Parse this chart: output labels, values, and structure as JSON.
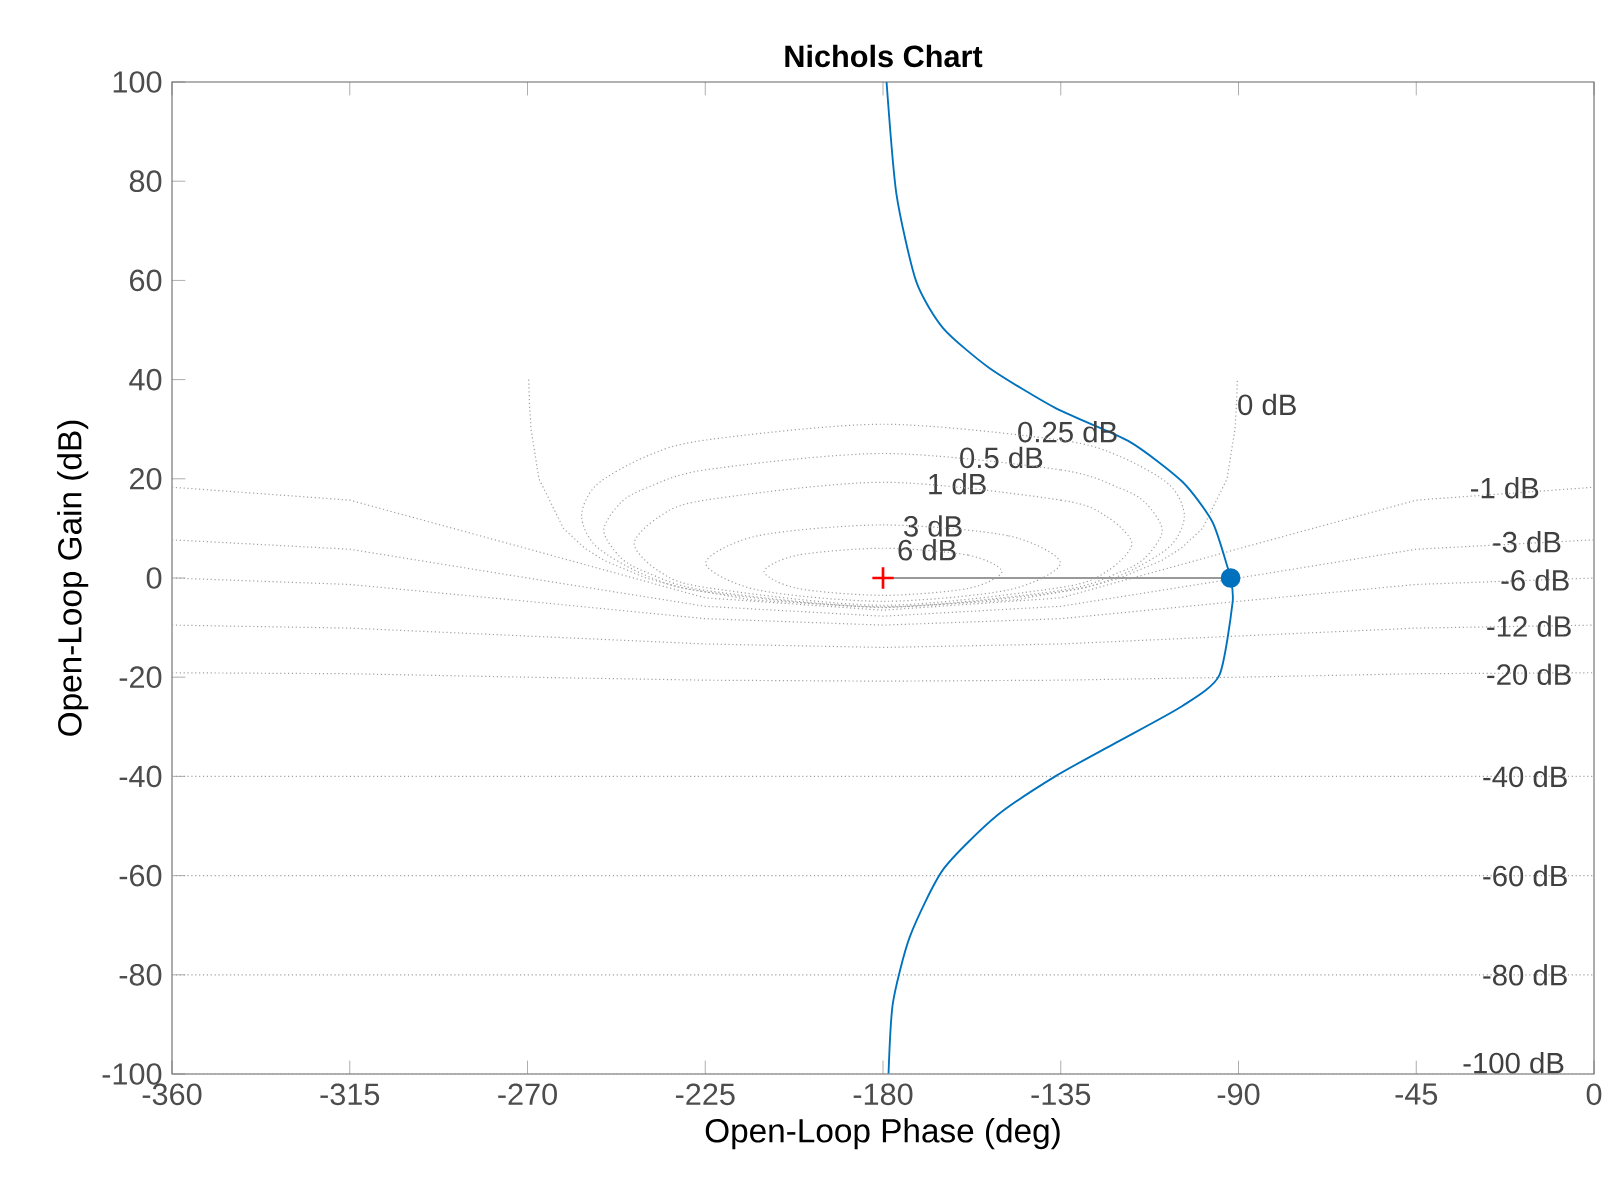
{
  "chart_data": {
    "type": "line",
    "title": "Nichols Chart",
    "xlabel": "Open-Loop Phase (deg)",
    "ylabel": "Open-Loop Gain (dB)",
    "xlim": [
      -360,
      0
    ],
    "ylim": [
      -100,
      100
    ],
    "xticks": [
      -360,
      -315,
      -270,
      -225,
      -180,
      -135,
      -90,
      -45,
      0
    ],
    "yticks": [
      -100,
      -80,
      -60,
      -40,
      -20,
      0,
      20,
      40,
      60,
      80,
      100
    ],
    "series": [
      {
        "color": "#a0a0a0",
        "line_style": "dotted",
        "x": [
          -269.7,
          -269.5,
          -269.1,
          -267.1,
          -260.9,
          -255.5,
          -250.5,
          -240,
          -231.3,
          -213.6,
          -180,
          -146.4,
          -128.7,
          -120,
          -109.5,
          -104.5,
          -99.1,
          -92.9,
          -90.9,
          -90.5,
          -90.3
        ],
        "values": [
          40,
          35,
          30,
          20,
          10,
          6.0,
          3.5,
          0,
          -1.9,
          -4.4,
          -6.0,
          -4.4,
          -1.9,
          0,
          3.5,
          6.0,
          10,
          20,
          30,
          35,
          40
        ]
      },
      {
        "color": "#a0a0a0",
        "line_style": "dotted",
        "x": [
          -360,
          -315,
          -270,
          -225,
          -180,
          -135,
          -90,
          -45,
          0
        ],
        "values": [
          18.3,
          15.7,
          5.9,
          -4.0,
          -6.5,
          -4.0,
          5.9,
          15.7,
          18.3
        ]
      },
      {
        "color": "#a0a0a0",
        "line_style": "dotted",
        "x": [
          -360,
          -315,
          -270,
          -225,
          -180,
          -135,
          -90,
          -45,
          0
        ],
        "values": [
          7.7,
          5.8,
          0,
          -5.7,
          -7.7,
          -5.7,
          0,
          5.8,
          7.7
        ]
      },
      {
        "color": "#a0a0a0",
        "line_style": "dotted",
        "x": [
          -360,
          -315,
          -270,
          -225,
          -180,
          -135,
          -90,
          -45,
          0
        ],
        "values": [
          0,
          -1.3,
          -4.7,
          -8.2,
          -9.5,
          -8.2,
          -4.7,
          -1.3,
          0
        ]
      },
      {
        "color": "#a0a0a0",
        "line_style": "dotted",
        "x": [
          -360,
          -315,
          -270,
          -225,
          -180,
          -135,
          -90,
          -45,
          0
        ],
        "values": [
          -9.5,
          -10.1,
          -11.7,
          -13.3,
          -14.0,
          -13.3,
          -11.7,
          -10.1,
          -9.5
        ]
      },
      {
        "color": "#a0a0a0",
        "line_style": "dotted",
        "x": [
          -360,
          -315,
          -270,
          -225,
          -180,
          -135,
          -90,
          -45,
          0
        ],
        "values": [
          -19.1,
          -19.3,
          -20,
          -20.6,
          -20.8,
          -20.6,
          -20,
          -19.3,
          -19.1
        ]
      },
      {
        "color": "#a0a0a0",
        "line_style": "dotted",
        "x": [
          -360,
          0
        ],
        "values": [
          -40,
          -40
        ]
      },
      {
        "color": "#a0a0a0",
        "line_style": "dotted",
        "x": [
          -360,
          0
        ],
        "values": [
          -60,
          -60
        ]
      },
      {
        "color": "#a0a0a0",
        "line_style": "dotted",
        "x": [
          -360,
          0
        ],
        "values": [
          -80,
          -80
        ]
      },
      {
        "color": "#a0a0a0",
        "line_style": "dotted",
        "x": [
          -360,
          0
        ],
        "values": [
          -100,
          -100
        ]
      },
      {
        "color": "#999999",
        "line_style": "solid",
        "x": [
          -180,
          -92
        ],
        "values": [
          0,
          0
        ]
      },
      {
        "color": "#0072bd",
        "line_style": "solid",
        "x": [
          -178.6,
          -177.5,
          -173.2,
          -164.8,
          -151.3,
          -136.2,
          -121,
          -104.2,
          -94.9,
          -91.5,
          -92,
          -92.7,
          -96.6,
          -104.2,
          -117.6,
          -136.2,
          -153.0,
          -164.8,
          -171.6,
          -176.6,
          -179.1
        ],
        "values": [
          -99.9,
          -85.7,
          -72.3,
          -58.8,
          -48.0,
          -39.9,
          -33.2,
          -25.8,
          -19.7,
          -4.9,
          0,
          2.0,
          11.3,
          19.4,
          27.5,
          34.2,
          42.3,
          50.4,
          59.8,
          77.4,
          100
        ]
      },
      {
        "type": "scatter",
        "color": "#0072bd",
        "marker": "circle",
        "x": [
          -92
        ],
        "values": [
          0
        ]
      },
      {
        "type": "scatter",
        "color": "#ff0000",
        "marker": "cross",
        "x": [
          -180
        ],
        "values": [
          0
        ]
      }
    ],
    "annotations": [
      {
        "text": "0 dB",
        "x": -90.5,
        "y": 35
      },
      "0.25 dB",
      "0.5 dB",
      "1 dB",
      "3 dB",
      "6 dB",
      {
        "text": "-1 dB",
        "x": -31.6,
        "y": 18.2
      },
      {
        "text": "-3 dB",
        "x": -26,
        "y": 7.3
      },
      {
        "text": "-6 dB",
        "x": -23.9,
        "y": -0.4
      },
      {
        "text": "-12 dB",
        "x": -27.5,
        "y": -9.7
      },
      {
        "text": "-20 dB",
        "x": -27.5,
        "y": -19.4
      },
      {
        "text": "-40 dB",
        "x": -28.5,
        "y": -40
      },
      {
        "text": "-60 dB",
        "x": -28.5,
        "y": -60
      },
      {
        "text": "-80 dB",
        "x": -28.5,
        "y": -80
      },
      {
        "text": "-100 dB",
        "x": -33.5,
        "y": -100
      }
    ]
  }
}
